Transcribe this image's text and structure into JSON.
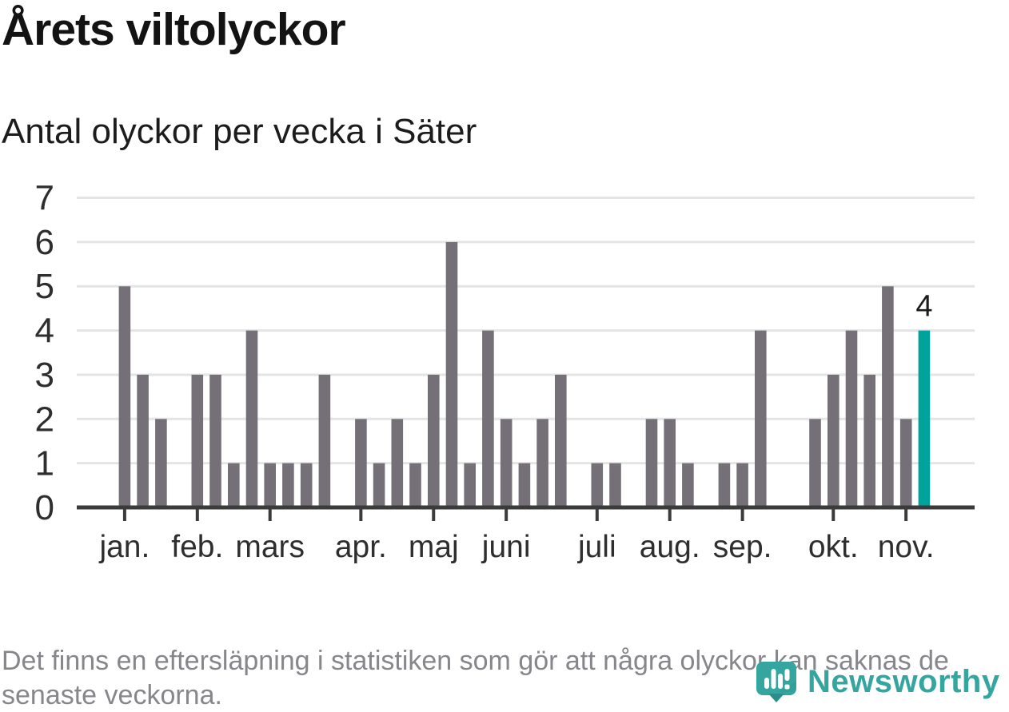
{
  "header": {
    "title": "Årets viltolyckor",
    "subtitle": "Antal olyckor per vecka i Säter"
  },
  "chart_data": {
    "type": "bar",
    "title": "Årets viltolyckor",
    "subtitle": "Antal olyckor per vecka i Säter",
    "x_unit": "vecka (week of year)",
    "ylabel": "",
    "xlabel": "",
    "grid": true,
    "ylim": [
      0,
      7
    ],
    "y_ticks": [
      0,
      1,
      2,
      3,
      4,
      5,
      6,
      7
    ],
    "values": [
      5,
      3,
      2,
      0,
      3,
      3,
      1,
      4,
      1,
      1,
      1,
      3,
      0,
      2,
      1,
      2,
      1,
      3,
      6,
      1,
      4,
      2,
      1,
      2,
      3,
      0,
      1,
      1,
      0,
      2,
      2,
      1,
      0,
      1,
      1,
      4,
      0,
      0,
      2,
      3,
      4,
      3,
      5,
      2,
      4
    ],
    "month_ticks": [
      {
        "label": "jan.",
        "week_index": 0
      },
      {
        "label": "feb.",
        "week_index": 4
      },
      {
        "label": "mars",
        "week_index": 8
      },
      {
        "label": "apr.",
        "week_index": 13
      },
      {
        "label": "maj",
        "week_index": 17
      },
      {
        "label": "juni",
        "week_index": 21
      },
      {
        "label": "juli",
        "week_index": 26
      },
      {
        "label": "aug.",
        "week_index": 30
      },
      {
        "label": "sep.",
        "week_index": 34
      },
      {
        "label": "okt.",
        "week_index": 39
      },
      {
        "label": "nov.",
        "week_index": 43
      }
    ],
    "highlight_index": 44,
    "highlight_label": "4",
    "colors": {
      "bar": "#757077",
      "highlight": "#00a39b",
      "gridline": "#e4e4e4",
      "axis": "#3b3b3b",
      "axis_text": "#2e2e2e",
      "data_label": "#1c1c1c"
    }
  },
  "footer": {
    "lines": [
      "Det finns en eftersläpning i statistiken som gör att några olyckor kan saknas de",
      "senaste veckorna."
    ]
  },
  "logo": {
    "text": "Newsworthy",
    "color": "#35a69f",
    "icon": "newsworthy-pin-icon"
  }
}
